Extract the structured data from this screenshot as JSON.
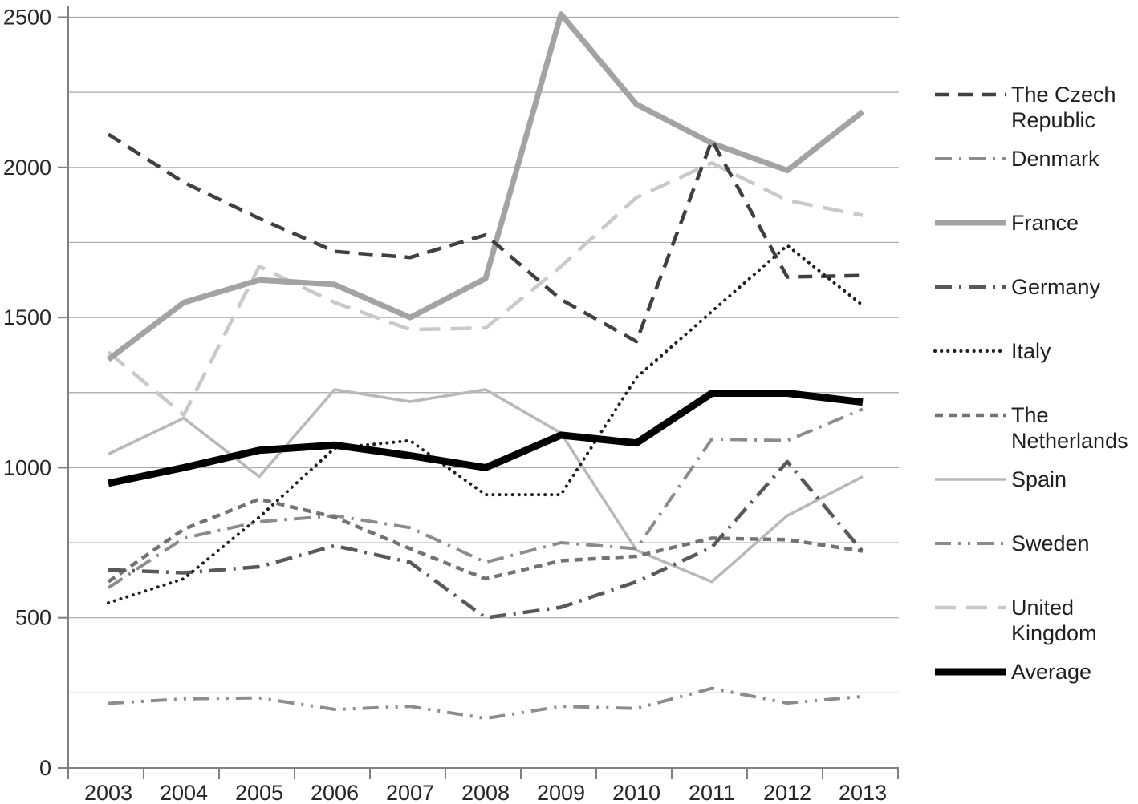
{
  "chart_data": {
    "type": "line",
    "title": "",
    "categories": [
      "2003",
      "2004",
      "2005",
      "2006",
      "2007",
      "2008",
      "2009",
      "2010",
      "2011",
      "2012",
      "2013"
    ],
    "y_ticks": [
      "0",
      "500",
      "1000",
      "1500",
      "2000",
      "2500"
    ],
    "ylim": [
      0,
      2500
    ],
    "gridline_interval": 250,
    "grid": true,
    "legend_position": "right",
    "axis_color": "#808080",
    "grid_color": "#a8a8a8",
    "tick_label_color": "#262626",
    "series": [
      {
        "name": "The Czech Republic",
        "color": "#404040",
        "dash": "dash",
        "width": 4.5,
        "values": [
          2110,
          1950,
          1830,
          1720,
          1700,
          1775,
          1560,
          1420,
          2090,
          1635,
          1640
        ]
      },
      {
        "name": "Denmark",
        "color": "#8c8c8c",
        "dash": "dashdot",
        "width": 4,
        "values": [
          600,
          765,
          820,
          840,
          800,
          685,
          750,
          730,
          1095,
          1090,
          1195
        ]
      },
      {
        "name": "France",
        "color": "#a3a3a3",
        "dash": "solid",
        "width": 7,
        "values": [
          1360,
          1550,
          1625,
          1610,
          1500,
          1630,
          2510,
          2210,
          2080,
          1990,
          2185
        ]
      },
      {
        "name": "Germany",
        "color": "#595959",
        "dash": "dashdot",
        "width": 4.5,
        "values": [
          660,
          650,
          670,
          740,
          685,
          500,
          535,
          620,
          735,
          1020,
          720
        ]
      },
      {
        "name": "Italy",
        "color": "#1f1f1f",
        "dash": "dot",
        "width": 4,
        "values": [
          550,
          630,
          835,
          1065,
          1090,
          910,
          910,
          1300,
          1520,
          1740,
          1540
        ]
      },
      {
        "name": "The Netherlands",
        "color": "#737373",
        "dash": "shortdash",
        "width": 4.5,
        "values": [
          620,
          795,
          895,
          835,
          730,
          630,
          690,
          705,
          765,
          760,
          722
        ]
      },
      {
        "name": "Spain",
        "color": "#b8b8b8",
        "dash": "solid",
        "width": 3.5,
        "values": [
          1045,
          1165,
          970,
          1260,
          1220,
          1260,
          1115,
          725,
          620,
          840,
          970
        ]
      },
      {
        "name": "Sweden",
        "color": "#8c8c8c",
        "dash": "dashdotdot",
        "width": 4,
        "values": [
          215,
          230,
          233,
          195,
          205,
          165,
          205,
          198,
          265,
          216,
          238
        ]
      },
      {
        "name": "United Kingdom",
        "color": "#c9c9c9",
        "dash": "longdash",
        "width": 4.5,
        "values": [
          1385,
          1175,
          1670,
          1550,
          1460,
          1465,
          1670,
          1900,
          2015,
          1890,
          1840
        ]
      },
      {
        "name": "Average",
        "color": "#000000",
        "dash": "solid",
        "width": 9,
        "values": [
          948,
          1000,
          1058,
          1075,
          1040,
          1000,
          1108,
          1082,
          1248,
          1248,
          1218
        ]
      }
    ]
  }
}
